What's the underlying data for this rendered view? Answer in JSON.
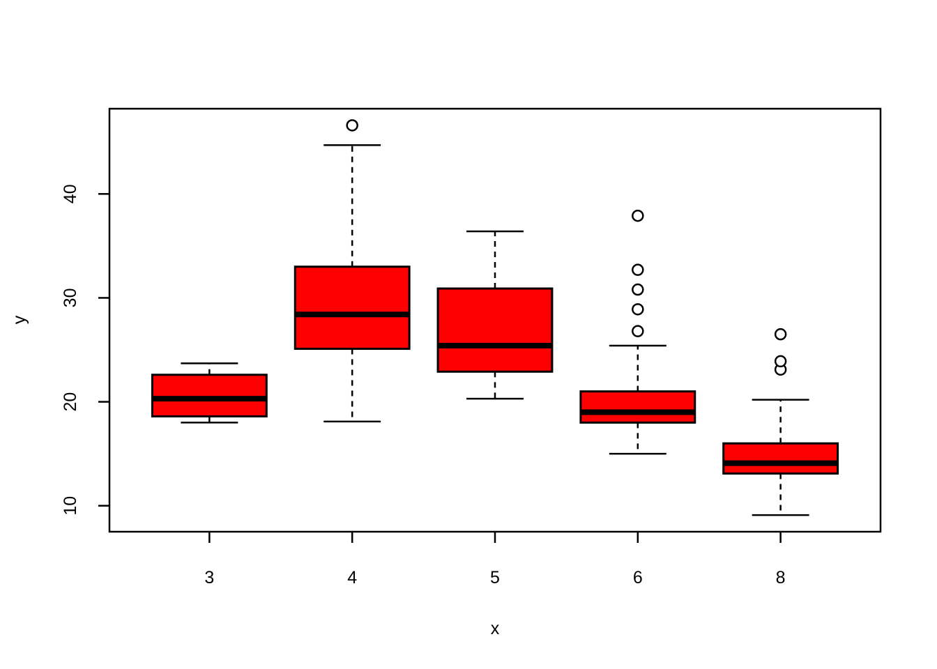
{
  "chart_data": {
    "type": "boxplot",
    "title": "",
    "xlabel": "x",
    "ylabel": "y",
    "categories": [
      "3",
      "4",
      "5",
      "6",
      "8"
    ],
    "y_ticks": [
      10,
      20,
      30,
      40
    ],
    "ylim": [
      7.5,
      48.2
    ],
    "grid": false,
    "legend": "none",
    "colors": {
      "box_fill": "#FF0000",
      "stroke": "#000000",
      "background": "#FFFFFF",
      "outlier_fill": "#FFFFFF"
    },
    "boxes": [
      {
        "category": "3",
        "whisker_low": 18.0,
        "q1": 18.6,
        "median": 20.3,
        "q3": 22.6,
        "whisker_high": 23.7,
        "outliers": []
      },
      {
        "category": "4",
        "whisker_low": 18.1,
        "q1": 25.1,
        "median": 28.4,
        "q3": 33.0,
        "whisker_high": 44.7,
        "outliers": [
          46.6
        ]
      },
      {
        "category": "5",
        "whisker_low": 20.3,
        "q1": 22.9,
        "median": 25.4,
        "q3": 30.9,
        "whisker_high": 36.4,
        "outliers": []
      },
      {
        "category": "6",
        "whisker_low": 15.0,
        "q1": 18.0,
        "median": 19.0,
        "q3": 21.0,
        "whisker_high": 25.4,
        "outliers": [
          26.8,
          28.9,
          30.8,
          32.7,
          37.9
        ]
      },
      {
        "category": "8",
        "whisker_low": 9.1,
        "q1": 13.1,
        "median": 14.1,
        "q3": 16.0,
        "whisker_high": 20.2,
        "outliers": [
          23.1,
          23.9,
          26.5
        ]
      }
    ]
  }
}
